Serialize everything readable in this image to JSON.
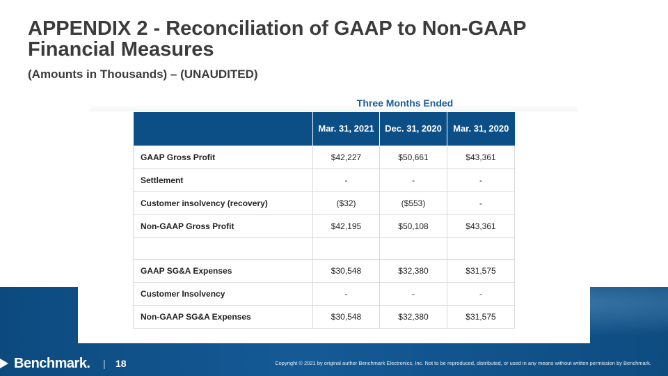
{
  "slide": {
    "title": "APPENDIX 2 - Reconciliation of GAAP to Non-GAAP Financial Measures",
    "subtitle": "(Amounts in Thousands) – (UNAUDITED)",
    "period_header": "Three Months Ended"
  },
  "table": {
    "columns": [
      "Mar. 31, 2021",
      "Dec. 31, 2020",
      "Mar. 31, 2020"
    ],
    "rows": [
      {
        "label": "GAAP Gross Profit",
        "values": [
          "$42,227",
          "$50,661",
          "$43,361"
        ]
      },
      {
        "label": "Settlement",
        "values": [
          "-",
          "-",
          "-"
        ]
      },
      {
        "label": "Customer insolvency (recovery)",
        "values": [
          "($32)",
          "($553)",
          "-"
        ]
      },
      {
        "label": "Non-GAAP Gross Profit",
        "values": [
          "$42,195",
          "$50,108",
          "$43,361"
        ]
      },
      {
        "label": "",
        "values": [
          "",
          "",
          ""
        ]
      },
      {
        "label": "GAAP SG&A Expenses",
        "values": [
          "$30,548",
          "$32,380",
          "$31,575"
        ]
      },
      {
        "label": "Customer Insolvency",
        "values": [
          "-",
          "-",
          "-"
        ]
      },
      {
        "label": "Non-GAAP SG&A Expenses",
        "values": [
          "$30,548",
          "$32,380",
          "$31,575"
        ]
      }
    ]
  },
  "footer": {
    "logo_text": "Benchmark.",
    "separator": "|",
    "page_number": "18",
    "copyright": "Copyright © 2021 by original author Benchmark Electronics, Inc. Not to be reproduced, distributed, or used in any means without written permission by Benchmark."
  },
  "colors": {
    "title": "#3b3b3b",
    "accent_blue": "#1b5e98",
    "header_fill": "#0c4f87",
    "band": "#0c4a7e"
  }
}
